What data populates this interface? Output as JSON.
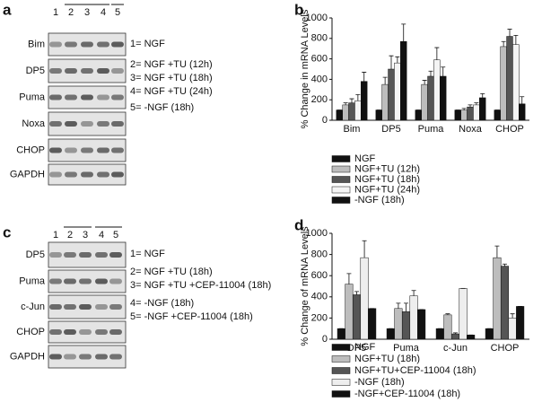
{
  "blots": [
    {
      "panel_label": "a",
      "lanes": [
        "1",
        "2",
        "3",
        "4",
        "5"
      ],
      "rows": [
        "Bim",
        "DP5",
        "Puma",
        "Noxa",
        "CHOP",
        "GAPDH"
      ],
      "legend": [
        "1= NGF",
        "2= NGF +TU (12h)",
        "3= NGF +TU (18h)",
        "4= NGF +TU (24h)",
        "5= -NGF (18h)"
      ]
    },
    {
      "panel_label": "c",
      "lanes": [
        "1",
        "2",
        "3",
        "4",
        "5"
      ],
      "rows": [
        "DP5",
        "Puma",
        "c-Jun",
        "CHOP",
        "GAPDH"
      ],
      "legend": [
        "1= NGF",
        "2= NGF +TU (18h)",
        "3= NGF +TU +CEP-11004 (18h)",
        "4= -NGF (18h)",
        "5= -NGF +CEP-11004 (18h)"
      ]
    }
  ],
  "chart_data": [
    {
      "type": "bar",
      "panel_label": "b",
      "y_label": "% Change in mRNA Levels",
      "categories": [
        "Bim",
        "DP5",
        "Puma",
        "Noxa",
        "CHOP"
      ],
      "ylim": [
        0,
        1000
      ],
      "yticks": [
        0,
        200,
        400,
        600,
        800,
        1000
      ],
      "legend": "below",
      "series": [
        {
          "name": "NGF",
          "color": "#111111",
          "values": [
            100,
            100,
            100,
            100,
            100
          ],
          "errors": [
            0,
            0,
            0,
            0,
            0
          ]
        },
        {
          "name": "NGF+TU (12h)",
          "color": "#bdbdbd",
          "values": [
            150,
            350,
            350,
            100,
            720
          ],
          "errors": [
            20,
            70,
            40,
            15,
            50
          ]
        },
        {
          "name": "NGF+TU (18h)",
          "color": "#555555",
          "values": [
            170,
            500,
            430,
            130,
            820
          ],
          "errors": [
            40,
            130,
            50,
            20,
            70
          ]
        },
        {
          "name": "NGF+TU (24h)",
          "color": "#f4f4f4",
          "values": [
            190,
            560,
            590,
            150,
            740
          ],
          "errors": [
            60,
            60,
            120,
            20,
            90
          ]
        },
        {
          "name": "-NGF (18h)",
          "color": "#111111",
          "values": [
            380,
            770,
            430,
            220,
            160
          ],
          "errors": [
            90,
            170,
            90,
            40,
            70
          ]
        }
      ]
    },
    {
      "type": "bar",
      "panel_label": "d",
      "y_label": "% Change of mRNA Levels",
      "categories": [
        "DP5",
        "Puma",
        "c-Jun",
        "CHOP"
      ],
      "ylim": [
        0,
        1000
      ],
      "yticks": [
        0,
        200,
        400,
        600,
        800,
        1000
      ],
      "legend": "below",
      "series": [
        {
          "name": "NGF",
          "color": "#111111",
          "values": [
            100,
            100,
            100,
            100
          ],
          "errors": [
            0,
            0,
            0,
            0
          ]
        },
        {
          "name": "NGF+TU (18h)",
          "color": "#bdbdbd",
          "values": [
            520,
            290,
            230,
            770
          ],
          "errors": [
            100,
            50,
            10,
            110
          ]
        },
        {
          "name": "NGF+TU+CEP-11004 (18h)",
          "color": "#555555",
          "values": [
            420,
            260,
            50,
            690
          ],
          "errors": [
            30,
            80,
            10,
            20
          ]
        },
        {
          "name": "-NGF (18h)",
          "color": "#eeeeee",
          "values": [
            770,
            410,
            480,
            200
          ],
          "errors": [
            160,
            50,
            0,
            40
          ]
        },
        {
          "name": "-NGF+CEP-11004 (18h)",
          "color": "#111111",
          "values": [
            290,
            280,
            40,
            310
          ],
          "errors": [
            0,
            0,
            0,
            0
          ]
        }
      ]
    }
  ]
}
